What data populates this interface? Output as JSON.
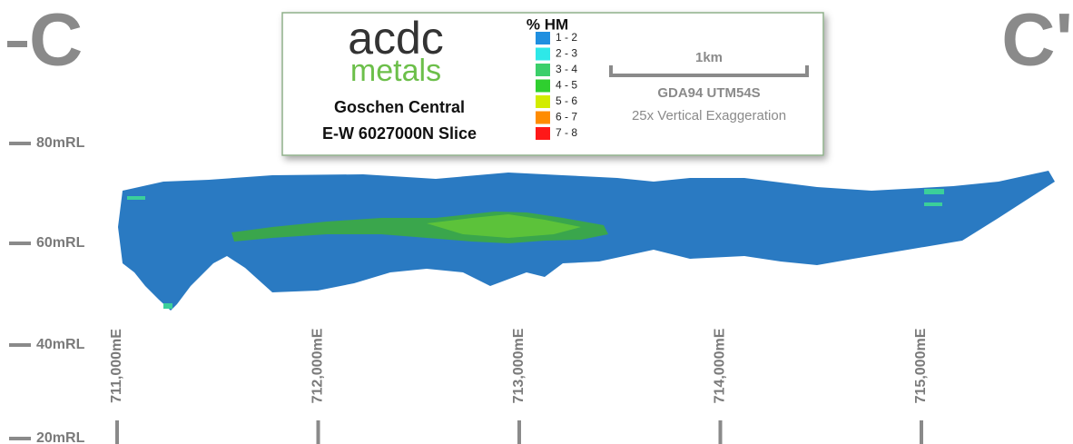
{
  "section": {
    "start": "C",
    "end": "C'"
  },
  "logo": {
    "top": "acdc",
    "bottom": "metals"
  },
  "header": {
    "title": "Goschen Central",
    "subtitle": "E-W 6027000N Slice"
  },
  "legend": {
    "title": "% HM",
    "items": [
      {
        "label": "1 - 2",
        "color": "#1f8fe0"
      },
      {
        "label": "2 - 3",
        "color": "#2ee8e8"
      },
      {
        "label": "3 - 4",
        "color": "#3bcf6a"
      },
      {
        "label": "4 - 5",
        "color": "#2fcf2f"
      },
      {
        "label": "5 - 6",
        "color": "#d2ec00"
      },
      {
        "label": "6 - 7",
        "color": "#ff8c00"
      },
      {
        "label": "7 - 8",
        "color": "#ff1818"
      }
    ]
  },
  "scale": {
    "length": "1km",
    "datum": "GDA94 UTM54S",
    "exaggeration": "25x Vertical Exaggeration"
  },
  "elevations": [
    "80mRL",
    "60mRL",
    "40mRL",
    "20mRL"
  ],
  "eastings": [
    "711,000mE",
    "712,000mE",
    "713,000mE",
    "714,000mE",
    "715,000mE"
  ]
}
